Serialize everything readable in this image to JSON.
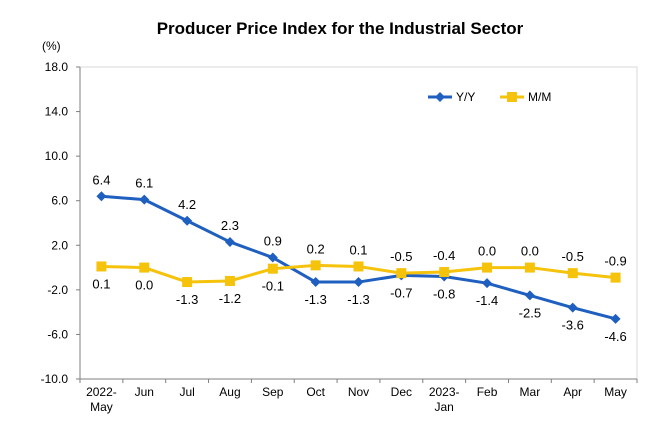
{
  "chart_data": {
    "type": "line",
    "title": "Producer Price Index for the Industrial Sector",
    "ylabel": "(%)",
    "xlabel": "",
    "ylim": [
      -10.0,
      18.0
    ],
    "yticks": [
      "18.0",
      "14.0",
      "10.0",
      "6.0",
      "2.0",
      "-2.0",
      "-6.0",
      "-10.0"
    ],
    "categories": [
      "2022-May",
      "Jun",
      "Jul",
      "Aug",
      "Sep",
      "Oct",
      "Nov",
      "Dec",
      "2023-Jan",
      "Feb",
      "Mar",
      "Apr",
      "May"
    ],
    "category_lines": [
      [
        "2022-",
        "May"
      ],
      [
        "Jun"
      ],
      [
        "Jul"
      ],
      [
        "Aug"
      ],
      [
        "Sep"
      ],
      [
        "Oct"
      ],
      [
        "Nov"
      ],
      [
        "Dec"
      ],
      [
        "2023-",
        "Jan"
      ],
      [
        "Feb"
      ],
      [
        "Mar"
      ],
      [
        "Apr"
      ],
      [
        "May"
      ]
    ],
    "legend_position": "top-right",
    "grid": false,
    "series": [
      {
        "name": "Y/Y",
        "color": "#1f5fbf",
        "marker": "diamond",
        "values": [
          6.4,
          6.1,
          4.2,
          2.3,
          0.9,
          -1.3,
          -1.3,
          -0.7,
          -0.8,
          -1.4,
          -2.5,
          -3.6,
          -4.6
        ],
        "labels": [
          "6.4",
          "6.1",
          "4.2",
          "2.3",
          "0.9",
          "-1.3",
          "-1.3",
          "-0.7",
          "-0.8",
          "-1.4",
          "-2.5",
          "-3.6",
          "-4.6"
        ]
      },
      {
        "name": "M/M",
        "color": "#f5c20c",
        "marker": "square",
        "values": [
          0.1,
          0.0,
          -1.3,
          -1.2,
          -0.1,
          0.2,
          0.1,
          -0.5,
          -0.4,
          0.0,
          0.0,
          -0.5,
          -0.9
        ],
        "labels": [
          "0.1",
          "0.0",
          "-1.3",
          "-1.2",
          "-0.1",
          "0.2",
          "0.1",
          "-0.5",
          "-0.4",
          "0.0",
          "0.0",
          "-0.5",
          "-0.9"
        ]
      }
    ]
  }
}
